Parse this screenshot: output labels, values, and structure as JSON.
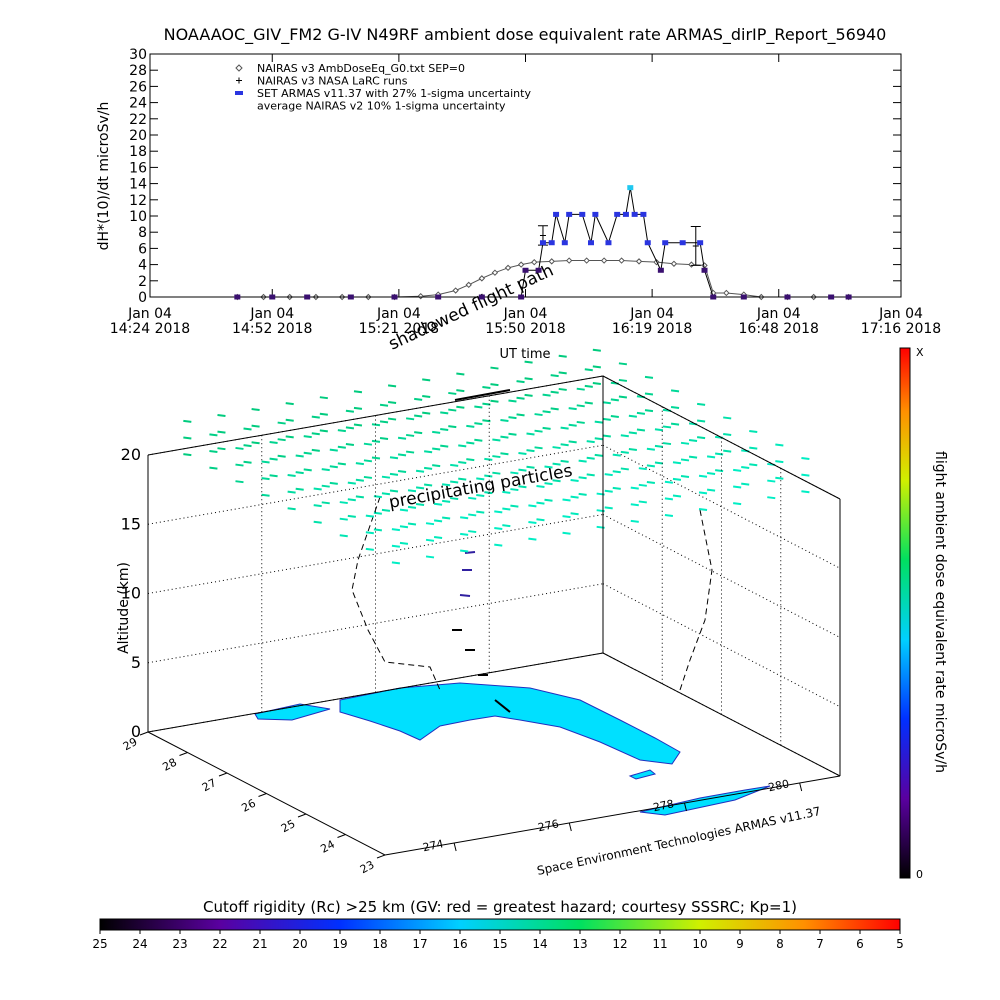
{
  "chart_data": [
    {
      "type": "line",
      "title": "NOAAAOC_GIV_FM2 G-IV   N49RF  ambient dose equivalent rate ARMAS_dirIP_Report_56940",
      "ylabel": "dH*(10)/dt microSv/h",
      "xlabel": "UT time",
      "xlim": [
        "14:24",
        "17:16"
      ],
      "ylim": [
        0,
        30
      ],
      "yticks": [
        0,
        2,
        4,
        6,
        8,
        10,
        12,
        14,
        16,
        18,
        20,
        22,
        24,
        26,
        28,
        30
      ],
      "xticks": [
        {
          "value": "14:24",
          "label": [
            "Jan 04",
            "14:24 2018"
          ]
        },
        {
          "value": "14:52",
          "label": [
            "Jan 04",
            "14:52 2018"
          ]
        },
        {
          "value": "15:21",
          "label": [
            "Jan 04",
            "15:21 2018"
          ]
        },
        {
          "value": "15:50",
          "label": [
            "Jan 04",
            "15:50 2018"
          ]
        },
        {
          "value": "16:19",
          "label": [
            "Jan 04",
            "16:19 2018"
          ]
        },
        {
          "value": "16:48",
          "label": [
            "Jan 04",
            "16:48 2018"
          ]
        },
        {
          "value": "17:16",
          "label": [
            "Jan 04",
            "17:16 2018"
          ]
        }
      ],
      "series": [
        {
          "name": "NAIRAS v3 AmbDoseEq_G0.txt SEP=0",
          "color": "#555555",
          "marker": "diamond",
          "x": [
            "14:44",
            "14:50",
            "14:56",
            "15:02",
            "15:08",
            "15:14",
            "15:20",
            "15:26",
            "15:30",
            "15:34",
            "15:37",
            "15:40",
            "15:43",
            "15:46",
            "15:49",
            "15:52",
            "15:56",
            "16:00",
            "16:04",
            "16:08",
            "16:12",
            "16:16",
            "16:20",
            "16:24",
            "16:28",
            "16:31",
            "16:33",
            "16:36",
            "16:40",
            "16:44",
            "16:50",
            "16:56",
            "17:04"
          ],
          "values": [
            0,
            0,
            0,
            0,
            0,
            0,
            0,
            0.1,
            0.3,
            0.8,
            1.5,
            2.3,
            3.0,
            3.6,
            4.0,
            4.3,
            4.4,
            4.5,
            4.5,
            4.5,
            4.5,
            4.4,
            4.3,
            4.1,
            4.0,
            3.9,
            0.5,
            0.5,
            0.3,
            0,
            0,
            0,
            0
          ]
        },
        {
          "name": "NAIRAS v3 NASA LaRC runs",
          "color": "#000000",
          "marker": "errorbar",
          "x": [
            "15:54",
            "16:29"
          ],
          "values": [
            7.6,
            6.3
          ],
          "errors": [
            1.2,
            2.4
          ]
        },
        {
          "name": "SET ARMAS v11.37 with 27% 1-sigma uncertainty",
          "color": "#2a35e0",
          "marker": "square",
          "x": [
            "14:44",
            "14:52",
            "15:00",
            "15:10",
            "15:20",
            "15:30",
            "15:40",
            "15:49",
            "15:50",
            "15:53",
            "15:54",
            "15:56",
            "15:57",
            "15:59",
            "16:00",
            "16:03",
            "16:05",
            "16:06",
            "16:09",
            "16:11",
            "16:13",
            "16:14",
            "16:15",
            "16:17",
            "16:18",
            "16:21",
            "16:22",
            "16:26",
            "16:30",
            "16:31",
            "16:33",
            "16:40",
            "16:50",
            "17:00",
            "17:04"
          ],
          "values": [
            0,
            0,
            0,
            0,
            0,
            0,
            0,
            0,
            3.3,
            3.3,
            6.7,
            6.7,
            10.2,
            6.7,
            10.2,
            10.2,
            6.7,
            10.2,
            6.7,
            10.2,
            10.2,
            13.5,
            10.2,
            10.2,
            6.7,
            3.3,
            6.7,
            6.7,
            6.7,
            3.3,
            0,
            0,
            0,
            0,
            0
          ]
        }
      ],
      "legend_note": "average NAIRAS v2 10% 1-sigma uncertainty"
    },
    {
      "type": "3d",
      "zlabel": "Altitude (km)",
      "zlim": [
        0,
        20
      ],
      "zticks": [
        0,
        5,
        10,
        15,
        20
      ],
      "latlim": [
        23,
        29
      ],
      "latticks": [
        29,
        28,
        27,
        26,
        25,
        24,
        23
      ],
      "lonlim": [
        272.8,
        280.7
      ],
      "lonticks": [
        274,
        276,
        278,
        280
      ],
      "annotations": [
        "shadowed flight path",
        "precipitating particles",
        "Space Environment Technologies ARMAS v11.37"
      ],
      "colorbar": {
        "label": "flight ambient dose equivalent rate microSv/h",
        "top": "X",
        "bottom": "0"
      },
      "rc_colorbar": {
        "title": "Cutoff rigidity (Rc) >25 km (GV: red = greatest hazard; courtesy SSSRC; Kp=1)",
        "xlim": [
          25,
          5
        ],
        "ticks": [
          25,
          24,
          23,
          22,
          21,
          20,
          19,
          18,
          17,
          16,
          15,
          14,
          13,
          12,
          11,
          10,
          9,
          8,
          7,
          6,
          5
        ]
      }
    }
  ]
}
